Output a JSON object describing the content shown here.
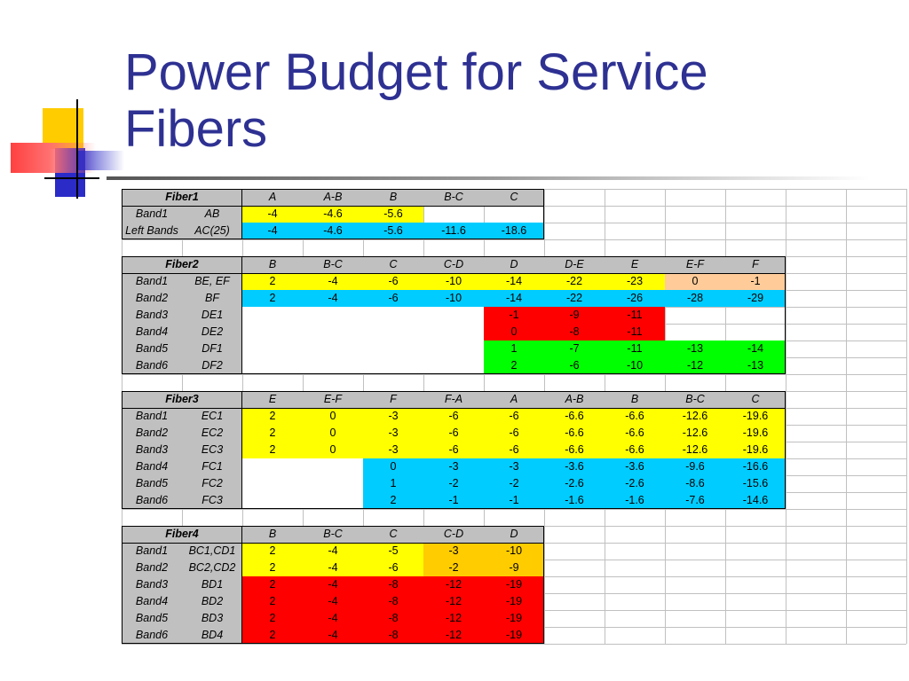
{
  "slide": {
    "title_line1": "Power Budget for Service",
    "title_line2": "Fibers"
  },
  "colors": {
    "title": "#2e3192",
    "header_grey": "#c0c0c0",
    "yellow": "#ffff00",
    "blue": "#00ccff",
    "red": "#ff0000",
    "green": "#00ff00",
    "orange": "#ffcc00",
    "peach": "#ffcc99",
    "gridline": "#c0c0c0"
  },
  "columns": 13,
  "grid_rows": 27,
  "tables": [
    {
      "name": "Fiber1",
      "header": [
        "A",
        "A-B",
        "B",
        "B-C",
        "C"
      ],
      "rows": [
        {
          "band": "Band1",
          "label": "AB",
          "values": [
            "-4",
            "-4.6",
            "-5.6"
          ],
          "fills": [
            "yellow",
            "yellow",
            "yellow"
          ]
        },
        {
          "band": "Left Bands",
          "label": "AC(25)",
          "values": [
            "-4",
            "-4.6",
            "-5.6",
            "-11.6",
            "-18.6"
          ],
          "fills": [
            "blue",
            "blue",
            "blue",
            "blue",
            "blue"
          ]
        }
      ]
    },
    {
      "name": "Fiber2",
      "header": [
        "B",
        "B-C",
        "C",
        "C-D",
        "D",
        "D-E",
        "E",
        "E-F",
        "F"
      ],
      "rows": [
        {
          "band": "Band1",
          "label": "BE, EF",
          "values": [
            "2",
            "-4",
            "-6",
            "-10",
            "-14",
            "-22",
            "-23",
            "0",
            "-1"
          ],
          "fills": [
            "yellow",
            "yellow",
            "yellow",
            "yellow",
            "yellow",
            "yellow",
            "yellow",
            "peach",
            "peach"
          ]
        },
        {
          "band": "Band2",
          "label": "BF",
          "values": [
            "2",
            "-4",
            "-6",
            "-10",
            "-14",
            "-22",
            "-26",
            "-28",
            "-29"
          ],
          "fills": [
            "blue",
            "blue",
            "blue",
            "blue",
            "blue",
            "blue",
            "blue",
            "blue",
            "blue"
          ]
        },
        {
          "band": "Band3",
          "label": "DE1",
          "values": [
            "",
            "",
            "",
            "",
            "-1",
            "-9",
            "-11"
          ],
          "fills": [
            "",
            "",
            "",
            "",
            "red",
            "red",
            "red"
          ]
        },
        {
          "band": "Band4",
          "label": "DE2",
          "values": [
            "",
            "",
            "",
            "",
            "0",
            "-8",
            "-11"
          ],
          "fills": [
            "",
            "",
            "",
            "",
            "red",
            "red",
            "red"
          ]
        },
        {
          "band": "Band5",
          "label": "DF1",
          "values": [
            "",
            "",
            "",
            "",
            "1",
            "-7",
            "-11",
            "-13",
            "-14"
          ],
          "fills": [
            "",
            "",
            "",
            "",
            "green",
            "green",
            "green",
            "green",
            "green"
          ]
        },
        {
          "band": "Band6",
          "label": "DF2",
          "values": [
            "",
            "",
            "",
            "",
            "2",
            "-6",
            "-10",
            "-12",
            "-13"
          ],
          "fills": [
            "",
            "",
            "",
            "",
            "green",
            "green",
            "green",
            "green",
            "green"
          ]
        }
      ]
    },
    {
      "name": "Fiber3",
      "header": [
        "E",
        "E-F",
        "F",
        "F-A",
        "A",
        "A-B",
        "B",
        "B-C",
        "C"
      ],
      "rows": [
        {
          "band": "Band1",
          "label": "EC1",
          "values": [
            "2",
            "0",
            "-3",
            "-6",
            "-6",
            "-6.6",
            "-6.6",
            "-12.6",
            "-19.6"
          ],
          "fills": [
            "yellow",
            "yellow",
            "yellow",
            "yellow",
            "yellow",
            "yellow",
            "yellow",
            "yellow",
            "yellow"
          ]
        },
        {
          "band": "Band2",
          "label": "EC2",
          "values": [
            "2",
            "0",
            "-3",
            "-6",
            "-6",
            "-6.6",
            "-6.6",
            "-12.6",
            "-19.6"
          ],
          "fills": [
            "yellow",
            "yellow",
            "yellow",
            "yellow",
            "yellow",
            "yellow",
            "yellow",
            "yellow",
            "yellow"
          ]
        },
        {
          "band": "Band3",
          "label": "EC3",
          "values": [
            "2",
            "0",
            "-3",
            "-6",
            "-6",
            "-6.6",
            "-6.6",
            "-12.6",
            "-19.6"
          ],
          "fills": [
            "yellow",
            "yellow",
            "yellow",
            "yellow",
            "yellow",
            "yellow",
            "yellow",
            "yellow",
            "yellow"
          ]
        },
        {
          "band": "Band4",
          "label": "FC1",
          "values": [
            "",
            "",
            "0",
            "-3",
            "-3",
            "-3.6",
            "-3.6",
            "-9.6",
            "-16.6"
          ],
          "fills": [
            "",
            "",
            "blue",
            "blue",
            "blue",
            "blue",
            "blue",
            "blue",
            "blue"
          ]
        },
        {
          "band": "Band5",
          "label": "FC2",
          "values": [
            "",
            "",
            "1",
            "-2",
            "-2",
            "-2.6",
            "-2.6",
            "-8.6",
            "-15.6"
          ],
          "fills": [
            "",
            "",
            "blue",
            "blue",
            "blue",
            "blue",
            "blue",
            "blue",
            "blue"
          ]
        },
        {
          "band": "Band6",
          "label": "FC3",
          "values": [
            "",
            "",
            "2",
            "-1",
            "-1",
            "-1.6",
            "-1.6",
            "-7.6",
            "-14.6"
          ],
          "fills": [
            "",
            "",
            "blue",
            "blue",
            "blue",
            "blue",
            "blue",
            "blue",
            "blue"
          ]
        }
      ]
    },
    {
      "name": "Fiber4",
      "header": [
        "B",
        "B-C",
        "C",
        "C-D",
        "D"
      ],
      "rows": [
        {
          "band": "Band1",
          "label": "BC1,CD1",
          "values": [
            "2",
            "-4",
            "-5",
            "-3",
            "-10"
          ],
          "fills": [
            "yellow",
            "yellow",
            "yellow",
            "orange",
            "orange"
          ]
        },
        {
          "band": "Band2",
          "label": "BC2,CD2",
          "values": [
            "2",
            "-4",
            "-6",
            "-2",
            "-9"
          ],
          "fills": [
            "yellow",
            "yellow",
            "yellow",
            "orange",
            "orange"
          ]
        },
        {
          "band": "Band3",
          "label": "BD1",
          "values": [
            "2",
            "-4",
            "-8",
            "-12",
            "-19"
          ],
          "fills": [
            "red",
            "red",
            "red",
            "red",
            "red"
          ]
        },
        {
          "band": "Band4",
          "label": "BD2",
          "values": [
            "2",
            "-4",
            "-8",
            "-12",
            "-19"
          ],
          "fills": [
            "red",
            "red",
            "red",
            "red",
            "red"
          ]
        },
        {
          "band": "Band5",
          "label": "BD3",
          "values": [
            "2",
            "-4",
            "-8",
            "-12",
            "-19"
          ],
          "fills": [
            "red",
            "red",
            "red",
            "red",
            "red"
          ]
        },
        {
          "band": "Band6",
          "label": "BD4",
          "values": [
            "2",
            "-4",
            "-8",
            "-12",
            "-19"
          ],
          "fills": [
            "red",
            "red",
            "red",
            "red",
            "red"
          ]
        }
      ]
    }
  ]
}
